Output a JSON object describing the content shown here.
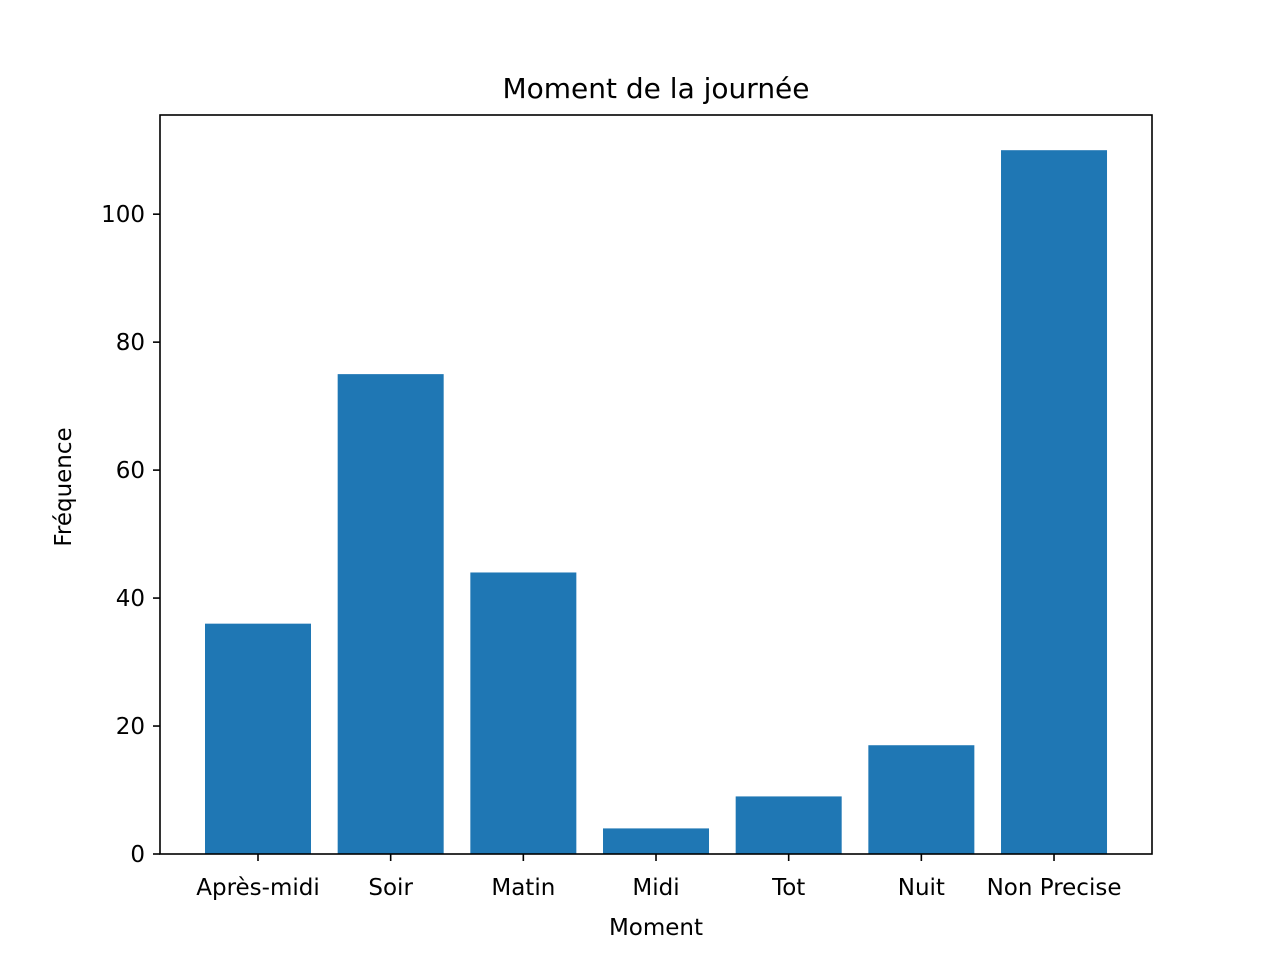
{
  "chart_data": {
    "type": "bar",
    "title": "Moment de la journée",
    "xlabel": "Moment",
    "ylabel": "Fréquence",
    "categories": [
      "Après-midi",
      "Soir",
      "Matin",
      "Midi",
      "Tot",
      "Nuit",
      "Non Precise"
    ],
    "values": [
      36,
      75,
      44,
      4,
      9,
      17,
      110
    ],
    "ylim": [
      0,
      115.5
    ],
    "yticks": [
      0,
      20,
      40,
      60,
      80,
      100
    ],
    "grid": false,
    "bar_color": "#1f77b4"
  }
}
